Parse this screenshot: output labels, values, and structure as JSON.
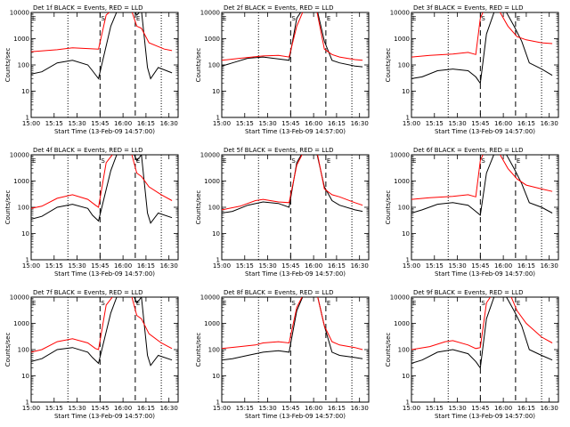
{
  "colors": {
    "events": "#000000",
    "lld": "#ff0000",
    "axes": "#000000",
    "background": "#ffffff"
  },
  "chart_data": [
    {
      "type": "line",
      "title": "Det 1f BLACK = Events, RED = LLD",
      "xlabel": "Start Time (13-Feb-09 14:57:00)",
      "ylabel": "Counts/sec",
      "yscale": "log",
      "ylim": [
        1,
        10000
      ],
      "x_ticks": [
        "15:00",
        "15:15",
        "15:30",
        "15:45",
        "16:00",
        "16:15",
        "16:30"
      ],
      "y_ticks": [
        "1",
        "10",
        "100",
        "1000",
        "10000"
      ],
      "markers": [
        "E",
        "S",
        "E"
      ],
      "grid": false,
      "series": [
        {
          "name": "Events",
          "x_minutes": [
            3,
            10,
            20,
            30,
            40,
            43,
            47,
            55,
            60,
            68,
            72,
            75,
            79,
            81,
            86,
            95
          ],
          "values": [
            45,
            55,
            120,
            150,
            100,
            60,
            30,
            3000,
            15000,
            20000,
            8000,
            12000,
            80,
            30,
            80,
            50
          ]
        },
        {
          "name": "LLD",
          "x_minutes": [
            3,
            20,
            30,
            40,
            47,
            52,
            60,
            68,
            72,
            75,
            80,
            90,
            95
          ],
          "values": [
            320,
            380,
            450,
            420,
            400,
            8000,
            20000,
            15000,
            3000,
            2500,
            700,
            400,
            350
          ]
        }
      ]
    },
    {
      "type": "line",
      "title": "Det 2f BLACK = Events, RED = LLD",
      "xlabel": "Start Time (13-Feb-09 14:57:00)",
      "ylabel": "Counts/sec",
      "yscale": "log",
      "ylim": [
        1,
        10000
      ],
      "x_ticks": [
        "15:00",
        "15:15",
        "15:30",
        "15:45",
        "16:00",
        "16:15",
        "16:30"
      ],
      "y_ticks": [
        "1",
        "10",
        "100",
        "1000",
        "10000"
      ],
      "markers": [
        "E",
        "S",
        "E"
      ],
      "grid": false,
      "series": [
        {
          "name": "Events",
          "x_minutes": [
            3,
            10,
            20,
            30,
            40,
            47,
            52,
            58,
            65,
            70,
            75,
            80,
            90,
            95
          ],
          "values": [
            90,
            120,
            180,
            200,
            170,
            150,
            6000,
            20000,
            15000,
            800,
            150,
            120,
            90,
            85
          ]
        },
        {
          "name": "LLD",
          "x_minutes": [
            3,
            15,
            30,
            40,
            47,
            52,
            58,
            65,
            70,
            75,
            80,
            90,
            95
          ],
          "values": [
            150,
            180,
            220,
            230,
            200,
            3000,
            20000,
            12000,
            400,
            250,
            200,
            160,
            150
          ]
        }
      ]
    },
    {
      "type": "line",
      "title": "Det 3f BLACK = Events, RED = LLD",
      "xlabel": "Start Time (13-Feb-09 14:57:00)",
      "ylabel": "Counts/sec",
      "yscale": "log",
      "ylim": [
        1,
        10000
      ],
      "x_ticks": [
        "15:00",
        "15:15",
        "15:30",
        "15:45",
        "16:00",
        "16:15",
        "16:30"
      ],
      "y_ticks": [
        "1",
        "10",
        "100",
        "1000",
        "10000"
      ],
      "markers": [
        "E",
        "S",
        "E"
      ],
      "grid": false,
      "series": [
        {
          "name": "Events",
          "x_minutes": [
            3,
            10,
            20,
            30,
            40,
            45,
            48,
            52,
            58,
            62,
            66,
            70,
            75,
            80,
            88,
            95
          ],
          "values": [
            30,
            35,
            60,
            70,
            60,
            35,
            20,
            1500,
            15000,
            20000,
            8000,
            3000,
            800,
            120,
            70,
            40
          ]
        },
        {
          "name": "LLD",
          "x_minutes": [
            3,
            15,
            30,
            40,
            45,
            48,
            52,
            58,
            66,
            72,
            78,
            88,
            95
          ],
          "values": [
            200,
            230,
            260,
            300,
            250,
            6000,
            20000,
            20000,
            3000,
            1200,
            900,
            700,
            650
          ]
        }
      ]
    },
    {
      "type": "line",
      "title": "Det 4f BLACK = Events, RED = LLD",
      "xlabel": "Start Time (13-Feb-09 14:57:00)",
      "ylabel": "Counts/sec",
      "yscale": "log",
      "ylim": [
        1,
        10000
      ],
      "x_ticks": [
        "15:00",
        "15:15",
        "15:30",
        "15:45",
        "16:00",
        "16:15",
        "16:30"
      ],
      "y_ticks": [
        "1",
        "10",
        "100",
        "1000",
        "10000"
      ],
      "markers": [
        "E",
        "S",
        "E"
      ],
      "grid": false,
      "series": [
        {
          "name": "Events",
          "x_minutes": [
            3,
            10,
            20,
            30,
            40,
            43,
            47,
            55,
            60,
            68,
            72,
            75,
            79,
            81,
            86,
            95
          ],
          "values": [
            35,
            45,
            100,
            130,
            90,
            50,
            30,
            2500,
            15000,
            20000,
            6000,
            10000,
            60,
            25,
            60,
            40
          ]
        },
        {
          "name": "LLD",
          "x_minutes": [
            3,
            10,
            20,
            30,
            40,
            45,
            47,
            52,
            60,
            68,
            72,
            75,
            80,
            88,
            95
          ],
          "values": [
            90,
            110,
            220,
            300,
            200,
            120,
            100,
            5000,
            20000,
            15000,
            2000,
            1500,
            600,
            300,
            180
          ]
        }
      ]
    },
    {
      "type": "line",
      "title": "Det 5f BLACK = Events, RED = LLD",
      "xlabel": "Start Time (13-Feb-09 14:57:00)",
      "ylabel": "Counts/sec",
      "yscale": "log",
      "ylim": [
        1,
        10000
      ],
      "x_ticks": [
        "15:00",
        "15:15",
        "15:30",
        "15:45",
        "16:00",
        "16:15",
        "16:30"
      ],
      "y_ticks": [
        "1",
        "10",
        "100",
        "1000",
        "10000"
      ],
      "markers": [
        "E",
        "S",
        "E"
      ],
      "grid": false,
      "series": [
        {
          "name": "Events",
          "x_minutes": [
            3,
            10,
            20,
            30,
            40,
            47,
            52,
            58,
            65,
            70,
            75,
            80,
            90,
            95
          ],
          "values": [
            60,
            70,
            120,
            160,
            140,
            100,
            5000,
            20000,
            12000,
            600,
            180,
            120,
            80,
            70
          ]
        },
        {
          "name": "LLD",
          "x_minutes": [
            3,
            15,
            25,
            30,
            40,
            47,
            52,
            58,
            65,
            70,
            75,
            80,
            90,
            95
          ],
          "values": [
            80,
            110,
            180,
            200,
            160,
            150,
            4000,
            20000,
            15000,
            500,
            300,
            250,
            150,
            120
          ]
        }
      ]
    },
    {
      "type": "line",
      "title": "Det 6f BLACK = Events, RED = LLD",
      "xlabel": "Start Time (13-Feb-09 14:57:00)",
      "ylabel": "Counts/sec",
      "yscale": "log",
      "ylim": [
        1,
        10000
      ],
      "x_ticks": [
        "15:00",
        "15:15",
        "15:30",
        "15:45",
        "16:00",
        "16:15",
        "16:30"
      ],
      "y_ticks": [
        "1",
        "10",
        "100",
        "1000",
        "10000"
      ],
      "markers": [
        "E",
        "S",
        "E"
      ],
      "grid": false,
      "series": [
        {
          "name": "Events",
          "x_minutes": [
            3,
            10,
            20,
            30,
            40,
            45,
            48,
            52,
            58,
            62,
            66,
            70,
            75,
            80,
            88,
            95
          ],
          "values": [
            60,
            80,
            130,
            150,
            120,
            70,
            50,
            2000,
            15000,
            20000,
            8000,
            3000,
            800,
            150,
            100,
            60
          ]
        },
        {
          "name": "LLD",
          "x_minutes": [
            3,
            15,
            30,
            40,
            45,
            48,
            52,
            58,
            66,
            72,
            78,
            88,
            95
          ],
          "values": [
            200,
            230,
            260,
            300,
            250,
            6000,
            20000,
            20000,
            3000,
            1200,
            700,
            500,
            400
          ]
        }
      ]
    },
    {
      "type": "line",
      "title": "Det 7f BLACK = Events, RED = LLD",
      "xlabel": "Start Time (13-Feb-09 14:57:00)",
      "ylabel": "Counts/sec",
      "yscale": "log",
      "ylim": [
        1,
        10000
      ],
      "x_ticks": [
        "15:00",
        "15:15",
        "15:30",
        "15:45",
        "16:00",
        "16:15",
        "16:30"
      ],
      "y_ticks": [
        "1",
        "10",
        "100",
        "1000",
        "10000"
      ],
      "markers": [
        "E",
        "S",
        "E"
      ],
      "grid": false,
      "series": [
        {
          "name": "Events",
          "x_minutes": [
            3,
            10,
            20,
            30,
            40,
            43,
            47,
            55,
            60,
            68,
            72,
            75,
            79,
            81,
            86,
            95
          ],
          "values": [
            35,
            45,
            100,
            120,
            80,
            50,
            30,
            2500,
            15000,
            20000,
            6000,
            10000,
            60,
            25,
            60,
            40
          ]
        },
        {
          "name": "LLD",
          "x_minutes": [
            3,
            10,
            20,
            30,
            40,
            45,
            47,
            52,
            60,
            68,
            72,
            75,
            80,
            88,
            95
          ],
          "values": [
            80,
            100,
            200,
            260,
            180,
            110,
            100,
            5000,
            20000,
            15000,
            2000,
            1500,
            400,
            180,
            110
          ]
        }
      ]
    },
    {
      "type": "line",
      "title": "Det 8f BLACK = Events, RED = LLD",
      "xlabel": "Start Time (13-Feb-09 14:57:00)",
      "ylabel": "Counts/sec",
      "yscale": "log",
      "ylim": [
        1,
        10000
      ],
      "x_ticks": [
        "15:00",
        "15:15",
        "15:30",
        "15:45",
        "16:00",
        "16:15",
        "16:30"
      ],
      "y_ticks": [
        "1",
        "10",
        "100",
        "1000",
        "10000"
      ],
      "markers": [
        "E",
        "S",
        "E"
      ],
      "grid": false,
      "series": [
        {
          "name": "Events",
          "x_minutes": [
            3,
            10,
            20,
            30,
            40,
            47,
            52,
            58,
            65,
            70,
            75,
            80,
            90,
            95
          ],
          "values": [
            40,
            45,
            60,
            80,
            90,
            80,
            3000,
            20000,
            15000,
            800,
            80,
            60,
            50,
            45
          ]
        },
        {
          "name": "LLD",
          "x_minutes": [
            3,
            15,
            25,
            30,
            40,
            47,
            52,
            58,
            65,
            70,
            75,
            80,
            90,
            95
          ],
          "values": [
            110,
            130,
            150,
            180,
            200,
            180,
            4000,
            20000,
            15000,
            800,
            200,
            150,
            120,
            100
          ]
        }
      ]
    },
    {
      "type": "line",
      "title": "Det 9f BLACK = Events, RED = LLD",
      "xlabel": "Start Time (13-Feb-09 14:57:00)",
      "ylabel": "Counts/sec",
      "yscale": "log",
      "ylim": [
        1,
        10000
      ],
      "x_ticks": [
        "15:00",
        "15:15",
        "15:30",
        "15:45",
        "16:00",
        "16:15",
        "16:30"
      ],
      "y_ticks": [
        "1",
        "10",
        "100",
        "1000",
        "10000"
      ],
      "markers": [
        "E",
        "S",
        "E"
      ],
      "grid": false,
      "series": [
        {
          "name": "Events",
          "x_minutes": [
            3,
            10,
            20,
            30,
            40,
            45,
            48,
            52,
            58,
            62,
            66,
            70,
            75,
            80,
            88,
            95
          ],
          "values": [
            30,
            40,
            80,
            100,
            70,
            35,
            20,
            1500,
            15000,
            20000,
            8000,
            3000,
            800,
            100,
            60,
            40
          ]
        },
        {
          "name": "LLD",
          "x_minutes": [
            3,
            15,
            25,
            30,
            40,
            45,
            48,
            52,
            58,
            66,
            72,
            78,
            88,
            95
          ],
          "values": [
            100,
            130,
            200,
            220,
            150,
            110,
            120,
            6000,
            20000,
            20000,
            3000,
            1000,
            300,
            180
          ]
        }
      ]
    }
  ]
}
